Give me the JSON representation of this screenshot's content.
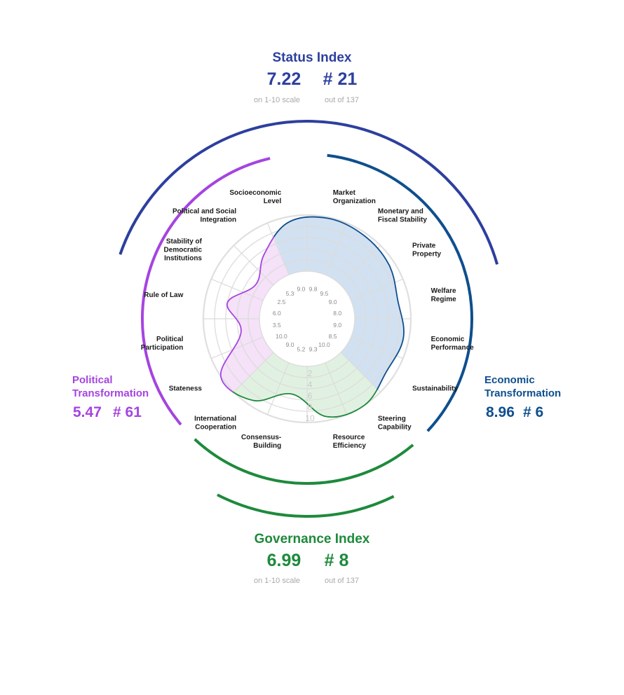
{
  "status_index": {
    "title": "Status Index",
    "score": "7.22",
    "rank": "# 21",
    "scale_note": "on 1-10 scale",
    "rank_note": "out of 137",
    "color": "#2d3f9e"
  },
  "governance_index": {
    "title": "Governance Index",
    "score": "6.99",
    "rank": "# 8",
    "scale_note": "on 1-10 scale",
    "rank_note": "out of 137",
    "color": "#1e8a3c"
  },
  "political_transformation": {
    "title_line1": "Political",
    "title_line2": "Transformation",
    "score": "5.47",
    "rank": "# 61",
    "color": "#a544e0"
  },
  "economic_transformation": {
    "title_line1": "Economic",
    "title_line2": "Transformation",
    "score": "8.96",
    "rank": "# 6",
    "color": "#0e4f8e"
  },
  "chart_data": {
    "type": "radar",
    "scale": [
      1,
      10
    ],
    "ring_labels": [
      "2",
      "4",
      "6",
      "8",
      "10"
    ],
    "criteria": [
      {
        "name": "Market Organization",
        "label_lines": [
          "Market",
          "Organization"
        ],
        "value": 9.8,
        "value_label": "9.8",
        "group": "economic"
      },
      {
        "name": "Monetary and Fiscal Stability",
        "label_lines": [
          "Monetary and",
          "Fiscal Stability"
        ],
        "value": 9.5,
        "value_label": "9.5",
        "group": "economic"
      },
      {
        "name": "Private Property",
        "label_lines": [
          "Private",
          "Property"
        ],
        "value": 9.0,
        "value_label": "9.0",
        "group": "economic"
      },
      {
        "name": "Welfare Regime",
        "label_lines": [
          "Welfare",
          "Regime"
        ],
        "value": 8.0,
        "value_label": "8.0",
        "group": "economic"
      },
      {
        "name": "Economic Performance",
        "label_lines": [
          "Economic",
          "Performance"
        ],
        "value": 9.0,
        "value_label": "9.0",
        "group": "economic"
      },
      {
        "name": "Sustainability",
        "label_lines": [
          "Sustainability"
        ],
        "value": 8.5,
        "value_label": "8.5",
        "group": "economic"
      },
      {
        "name": "Steering Capability",
        "label_lines": [
          "Steering",
          "Capability"
        ],
        "value": 10.0,
        "value_label": "10.0",
        "group": "governance"
      },
      {
        "name": "Resource Efficiency",
        "label_lines": [
          "Resource",
          "Efficiency"
        ],
        "value": 9.3,
        "value_label": "9.3",
        "group": "governance"
      },
      {
        "name": "Consensus-Building",
        "label_lines": [
          "Consensus-",
          "Building"
        ],
        "value": 5.2,
        "value_label": "5.2",
        "group": "governance"
      },
      {
        "name": "International Cooperation",
        "label_lines": [
          "International",
          "Cooperation"
        ],
        "value": 9.0,
        "value_label": "9.0",
        "group": "governance"
      },
      {
        "name": "Stateness",
        "label_lines": [
          "Stateness"
        ],
        "value": 10.0,
        "value_label": "10.0",
        "group": "political"
      },
      {
        "name": "Political Participation",
        "label_lines": [
          "Political",
          "Participation"
        ],
        "value": 3.5,
        "value_label": "3.5",
        "group": "political"
      },
      {
        "name": "Rule of Law",
        "label_lines": [
          "Rule of Law"
        ],
        "value": 6.0,
        "value_label": "6.0",
        "group": "political"
      },
      {
        "name": "Stability of Democratic Institutions",
        "label_lines": [
          "Stability of",
          "Democratic",
          "Institutions"
        ],
        "value": 2.5,
        "value_label": "2.5",
        "group": "political"
      },
      {
        "name": "Political and Social Integration",
        "label_lines": [
          "Political and Social",
          "Integration"
        ],
        "value": 5.3,
        "value_label": "5.3",
        "group": "political"
      },
      {
        "name": "Socioeconomic Level",
        "label_lines": [
          "Socioeconomic",
          "Level"
        ],
        "value": 9.0,
        "value_label": "9.0",
        "group": "economic"
      }
    ],
    "colors": {
      "economic_fill": "#c9dcee",
      "governance_fill": "#dcefdc",
      "political_fill": "#f3dcf7",
      "economic_line": "#0e4f8e",
      "governance_line": "#1e8a3c",
      "political_line": "#a544e0",
      "grid": "#dcdcdc",
      "status_arc": "#2d3f9e"
    }
  }
}
